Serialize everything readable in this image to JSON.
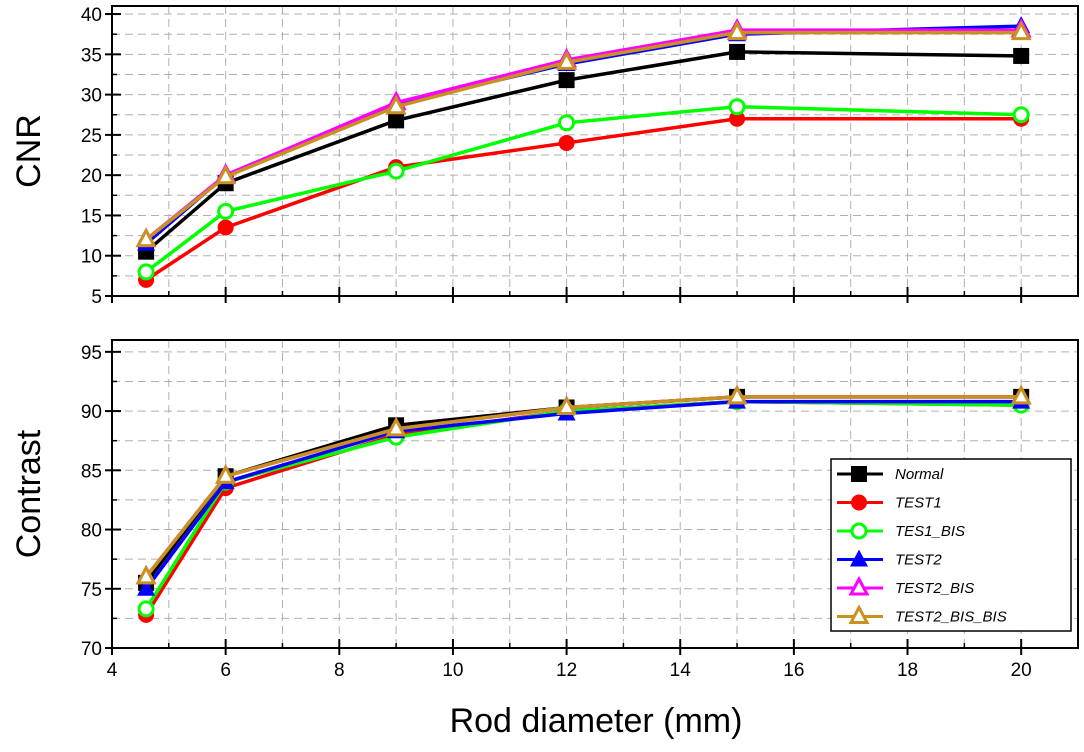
{
  "chart_data": [
    {
      "type": "line",
      "ylabel": "CNR",
      "xlabel": "",
      "xlim": [
        4,
        21
      ],
      "ylim": [
        5,
        41
      ],
      "yticks": [
        "5",
        "10",
        "15",
        "20",
        "25",
        "30",
        "35",
        "40"
      ],
      "grid": true,
      "x": [
        4.6,
        6,
        9,
        12,
        15,
        20
      ],
      "series": [
        {
          "name": "Normal",
          "color": "#000000",
          "marker": "filled-square",
          "values": [
            10.5,
            19.0,
            26.8,
            31.8,
            35.3,
            34.8
          ]
        },
        {
          "name": "TEST1",
          "color": "#ff0000",
          "marker": "filled-circle",
          "values": [
            7.0,
            13.5,
            21.0,
            24.0,
            27.0,
            27.0
          ]
        },
        {
          "name": "TES1_BIS",
          "color": "#00ff00",
          "marker": "open-circle",
          "values": [
            8.0,
            15.5,
            20.5,
            26.5,
            28.5,
            27.5
          ]
        },
        {
          "name": "TEST2",
          "color": "#0000ff",
          "marker": "filled-triangle",
          "values": [
            11.5,
            20.0,
            28.8,
            33.8,
            37.5,
            38.5
          ]
        },
        {
          "name": "TEST2_BIS",
          "color": "#ff00ff",
          "marker": "open-triangle",
          "values": [
            12.0,
            20.0,
            29.0,
            34.3,
            38.0,
            38.0
          ]
        },
        {
          "name": "TEST2_BIS_BIS",
          "color": "#c89120",
          "marker": "open-triangle",
          "values": [
            12.0,
            19.8,
            28.5,
            34.0,
            37.7,
            37.7
          ]
        }
      ]
    },
    {
      "type": "line",
      "ylabel": "Contrast",
      "xlabel": "Rod diameter (mm)",
      "xlim": [
        4,
        21
      ],
      "ylim": [
        70,
        96
      ],
      "xticks": [
        "4",
        "6",
        "8",
        "10",
        "12",
        "14",
        "16",
        "18",
        "20"
      ],
      "yticks": [
        "70",
        "75",
        "80",
        "85",
        "90",
        "95"
      ],
      "grid": true,
      "legend": "bottom-right",
      "x": [
        4.6,
        6,
        9,
        12,
        15,
        20
      ],
      "series": [
        {
          "name": "Normal",
          "color": "#000000",
          "marker": "filled-square",
          "values": [
            75.5,
            84.5,
            88.8,
            90.3,
            91.2,
            91.2
          ]
        },
        {
          "name": "TEST1",
          "color": "#ff0000",
          "marker": "filled-circle",
          "values": [
            72.8,
            83.5,
            88.0,
            90.0,
            90.8,
            90.5
          ]
        },
        {
          "name": "TES1_BIS",
          "color": "#00ff00",
          "marker": "open-circle",
          "values": [
            73.3,
            84.0,
            87.8,
            90.0,
            90.8,
            90.5
          ]
        },
        {
          "name": "TEST2",
          "color": "#0000ff",
          "marker": "filled-triangle",
          "values": [
            75.0,
            84.0,
            88.3,
            89.8,
            90.8,
            90.8
          ]
        },
        {
          "name": "TEST2_BIS",
          "color": "#ff00ff",
          "marker": "open-triangle",
          "values": [
            76.0,
            84.5,
            88.5,
            90.3,
            91.2,
            91.2
          ]
        },
        {
          "name": "TEST2_BIS_BIS",
          "color": "#c89120",
          "marker": "open-triangle",
          "values": [
            76.0,
            84.5,
            88.5,
            90.3,
            91.2,
            91.2
          ]
        }
      ]
    }
  ]
}
